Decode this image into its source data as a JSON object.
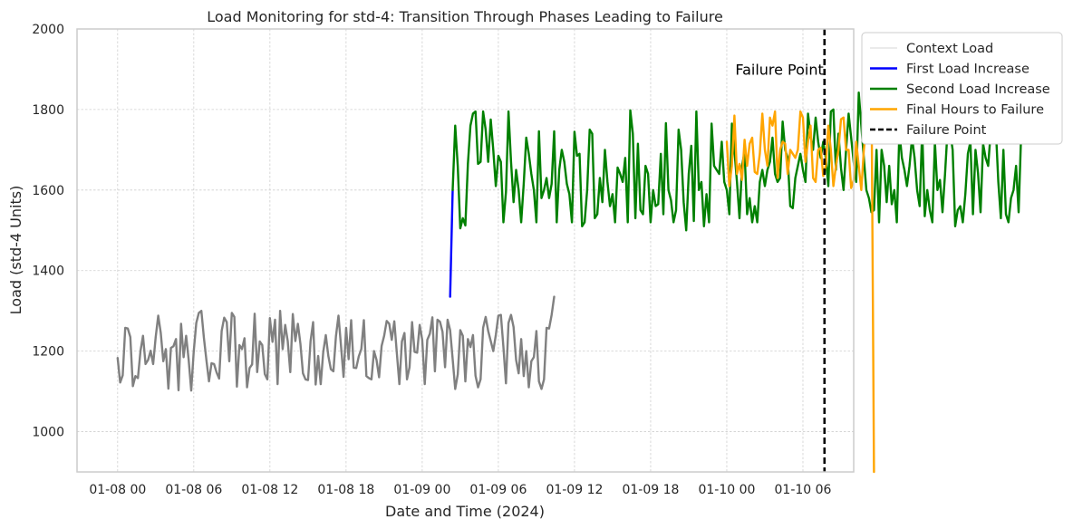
{
  "chart_data": {
    "type": "line",
    "title": "Load Monitoring for std-4: Transition Through Phases Leading to Failure",
    "xlabel": "Date and Time (2024)",
    "ylabel": "Load (std-4 Units)",
    "x_unit": "hours since 2024-01-08 00:00",
    "xlim": [
      -3.2,
      58.0
    ],
    "ylim": [
      900,
      2000
    ],
    "x_ticks": [
      {
        "value": 0,
        "label": "01-08 00"
      },
      {
        "value": 6,
        "label": "01-08 06"
      },
      {
        "value": 12,
        "label": "01-08 12"
      },
      {
        "value": 18,
        "label": "01-08 18"
      },
      {
        "value": 24,
        "label": "01-09 00"
      },
      {
        "value": 30,
        "label": "01-09 06"
      },
      {
        "value": 36,
        "label": "01-09 12"
      },
      {
        "value": 42,
        "label": "01-09 18"
      },
      {
        "value": 48,
        "label": "01-10 00"
      },
      {
        "value": 54,
        "label": "01-10 06"
      }
    ],
    "y_ticks": [
      1000,
      1200,
      1400,
      1600,
      1800,
      2000
    ],
    "grid": true,
    "legend_position": "outside top-right",
    "series": [
      {
        "name": "Context Load",
        "color": "#808080",
        "legend_color": "#dddddd",
        "x_start": 0.0,
        "x_step": 0.2,
        "values": [
          1183,
          1122,
          1140,
          1258,
          1256,
          1235,
          1113,
          1138,
          1133,
          1200,
          1238,
          1168,
          1178,
          1201,
          1168,
          1235,
          1288,
          1245,
          1175,
          1205,
          1107,
          1208,
          1212,
          1230,
          1103,
          1268,
          1185,
          1238,
          1178,
          1102,
          1200,
          1270,
          1295,
          1300,
          1233,
          1177,
          1125,
          1170,
          1168,
          1147,
          1132,
          1250,
          1283,
          1272,
          1175,
          1295,
          1285,
          1112,
          1215,
          1205,
          1232,
          1110,
          1158,
          1167,
          1293,
          1148,
          1224,
          1215,
          1143,
          1130,
          1282,
          1223,
          1278,
          1118,
          1300,
          1205,
          1265,
          1225,
          1148,
          1292,
          1225,
          1268,
          1218,
          1145,
          1130,
          1128,
          1225,
          1272,
          1117,
          1188,
          1118,
          1198,
          1240,
          1188,
          1155,
          1150,
          1237,
          1288,
          1213,
          1136,
          1258,
          1180,
          1277,
          1159,
          1158,
          1187,
          1205,
          1277,
          1138,
          1133,
          1130,
          1200,
          1178,
          1135,
          1213,
          1238,
          1275,
          1268,
          1228,
          1274,
          1195,
          1118,
          1224,
          1245,
          1130,
          1160,
          1272,
          1198,
          1196,
          1265,
          1228,
          1118,
          1228,
          1243,
          1284,
          1150,
          1278,
          1273,
          1248,
          1160,
          1278,
          1252,
          1180,
          1106,
          1142,
          1252,
          1238,
          1125,
          1230,
          1210,
          1240,
          1139,
          1110,
          1130,
          1258,
          1285,
          1250,
          1225,
          1200,
          1240,
          1288,
          1290,
          1210,
          1120,
          1270,
          1290,
          1260,
          1178,
          1145,
          1230,
          1138,
          1200,
          1110,
          1175,
          1185,
          1250,
          1125,
          1106,
          1130,
          1258,
          1256,
          1290,
          1335
        ]
      },
      {
        "name": "First Load Increase",
        "color": "#0000ff",
        "x": [
          26.2,
          26.4
        ],
        "values": [
          1335,
          1600
        ]
      },
      {
        "name": "Second Load Increase",
        "color": "#008000",
        "x_start": 26.4,
        "x_step": 0.2,
        "values": [
          1600,
          1760,
          1660,
          1505,
          1530,
          1512,
          1665,
          1760,
          1790,
          1795,
          1665,
          1670,
          1795,
          1750,
          1670,
          1775,
          1700,
          1610,
          1685,
          1670,
          1520,
          1595,
          1795,
          1670,
          1570,
          1650,
          1600,
          1520,
          1615,
          1730,
          1690,
          1640,
          1600,
          1520,
          1746,
          1580,
          1600,
          1630,
          1580,
          1615,
          1746,
          1520,
          1650,
          1700,
          1670,
          1615,
          1590,
          1520,
          1745,
          1685,
          1690,
          1510,
          1520,
          1600,
          1750,
          1740,
          1530,
          1540,
          1630,
          1570,
          1700,
          1620,
          1560,
          1590,
          1520,
          1656,
          1640,
          1620,
          1680,
          1520,
          1798,
          1740,
          1530,
          1715,
          1550,
          1540,
          1660,
          1640,
          1520,
          1600,
          1560,
          1565,
          1690,
          1540,
          1766,
          1600,
          1575,
          1520,
          1550,
          1750,
          1700,
          1570,
          1500,
          1640,
          1710,
          1523,
          1795,
          1600,
          1620,
          1510,
          1590,
          1520,
          1765,
          1660,
          1650,
          1640,
          1720,
          1620,
          1600,
          1540,
          1765,
          1698,
          1620,
          1530,
          1660,
          1695,
          1540,
          1580,
          1520,
          1560,
          1520,
          1620,
          1650,
          1610,
          1650,
          1670,
          1730,
          1640,
          1620,
          1630,
          1770,
          1700,
          1680,
          1560,
          1555,
          1630,
          1660,
          1690,
          1650,
          1620,
          1790,
          1735,
          1700,
          1780,
          1720,
          1680,
          1720,
          1680,
          1610,
          1795,
          1800,
          1650,
          1740,
          1655,
          1600,
          1700,
          1790,
          1730,
          1670,
          1620,
          1842,
          1760,
          1680,
          1600,
          1580,
          1545,
          1550,
          1700,
          1520,
          1700,
          1660,
          1570,
          1660,
          1565,
          1600,
          1520,
          1745,
          1680,
          1650,
          1610,
          1660,
          1730,
          1680,
          1600,
          1560,
          1750,
          1535,
          1600,
          1550,
          1520,
          1720,
          1600,
          1625,
          1545,
          1640,
          1750,
          1745,
          1700,
          1510,
          1550,
          1560,
          1520,
          1590,
          1690,
          1720,
          1540,
          1700,
          1642,
          1545,
          1715,
          1680,
          1660,
          1745,
          1718,
          1755,
          1620,
          1530,
          1700,
          1540,
          1520,
          1580,
          1600,
          1660,
          1545,
          1740,
          1720
        ]
      },
      {
        "name": "Final Hours to Failure",
        "color": "#ffa500",
        "x_start": 48.0,
        "x_step": 0.2,
        "values": [
          1720,
          1610,
          1660,
          1785,
          1640,
          1665,
          1625,
          1725,
          1660,
          1715,
          1730,
          1645,
          1640,
          1690,
          1790,
          1700,
          1660,
          1780,
          1760,
          1795,
          1630,
          1700,
          1720,
          1715,
          1640,
          1700,
          1690,
          1680,
          1700,
          1795,
          1780,
          1670,
          1720,
          1760,
          1630,
          1620,
          1700,
          1705,
          1635,
          1660,
          1760,
          1700,
          1610,
          1660,
          1700,
          1776,
          1780,
          1700,
          1700,
          1605,
          1625,
          1720,
          1660,
          1600,
          1700,
          1760,
          1760,
          1870,
          900
        ]
      }
    ],
    "failure_point": {
      "name": "Failure Point",
      "x": 55.7,
      "color": "#000000",
      "annotation": "Failure Point",
      "annotation_y": 1900
    }
  }
}
